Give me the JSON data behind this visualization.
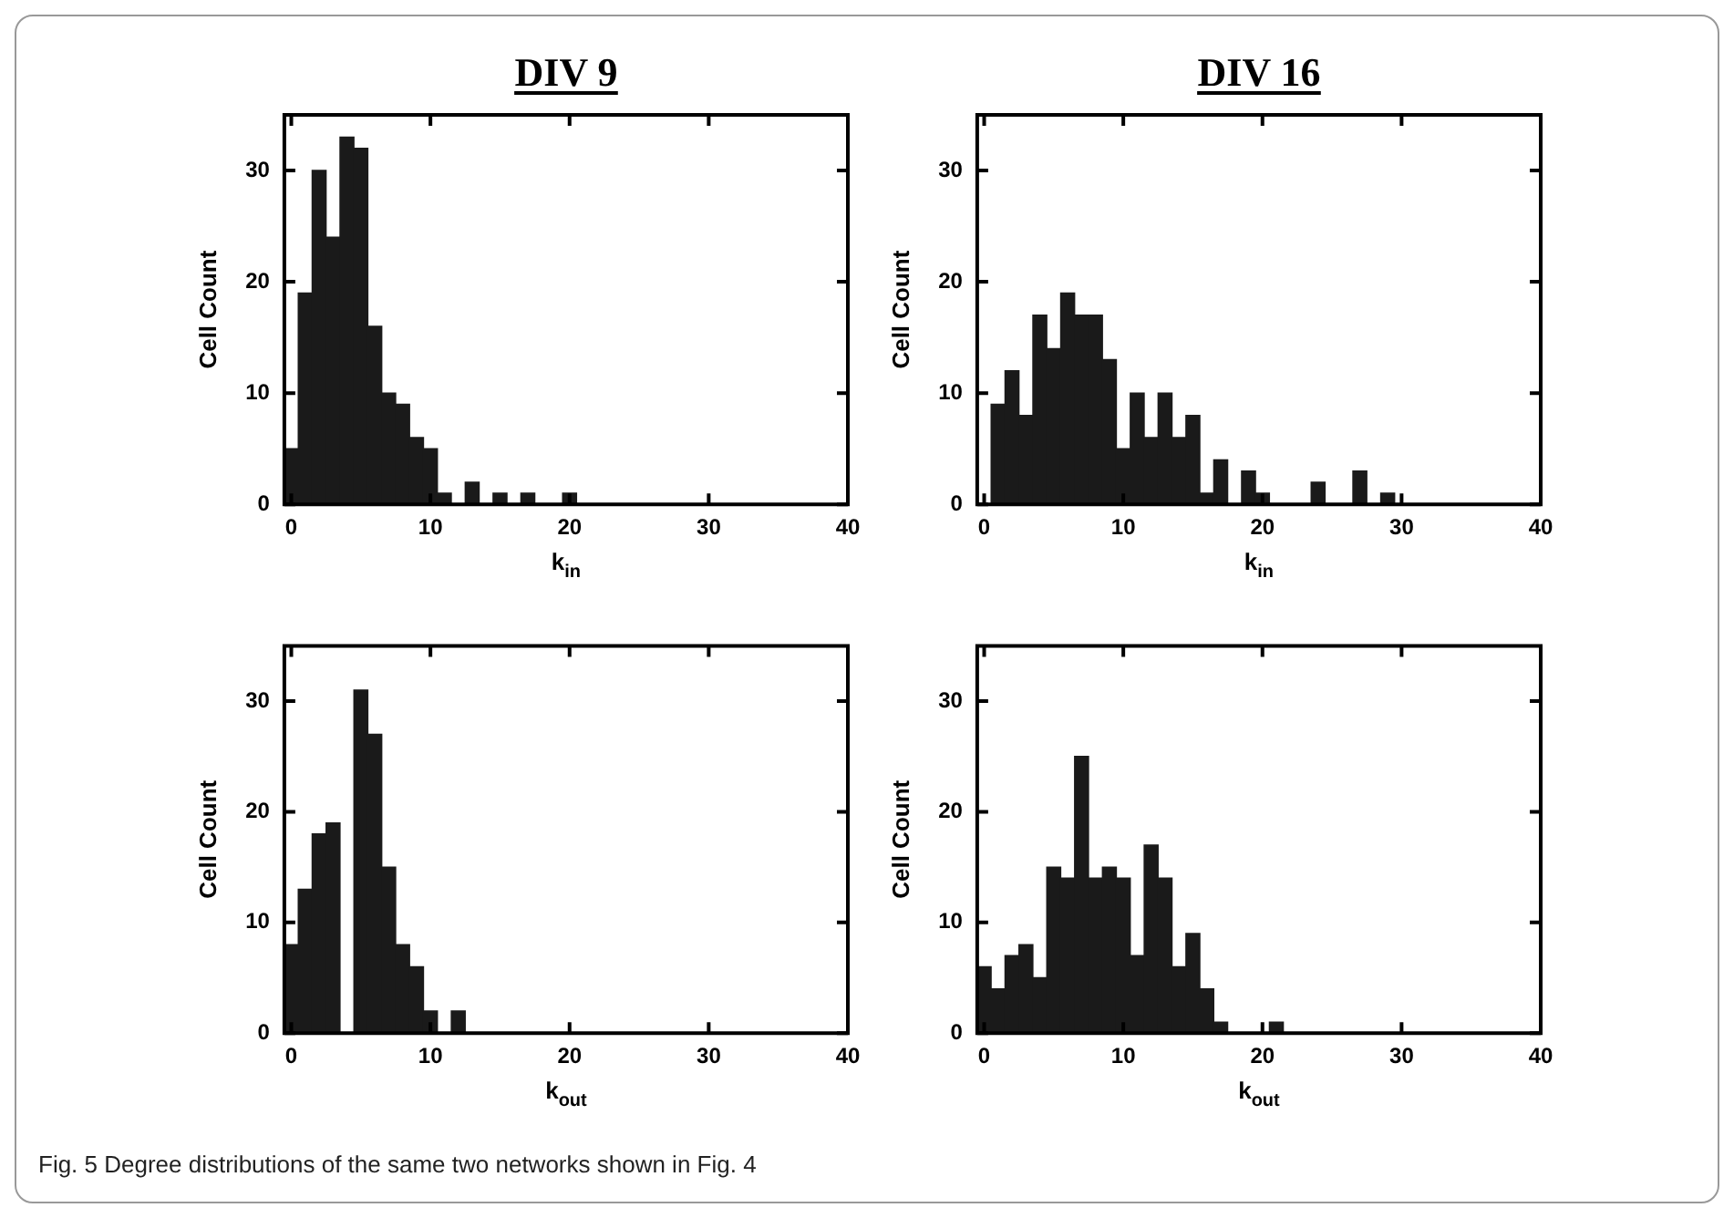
{
  "chart_data": [
    {
      "type": "histogram",
      "title": "DIV 9",
      "xlabel": "k$_{in}$",
      "ylabel": "Cell Count",
      "color": "#1a1a1a",
      "xlim": [
        -0.5,
        40
      ],
      "ylim": [
        0,
        35
      ],
      "xticks": [
        0,
        10,
        20,
        30,
        40
      ],
      "yticks": [
        0,
        10,
        20,
        30
      ],
      "bins": [
        -0.5,
        0.5,
        1.5,
        2.5,
        3.5,
        4.5,
        5.5,
        6.5,
        7.5,
        8.5,
        9.5,
        10.5,
        11.5,
        12.5,
        13.5,
        14.5,
        15.5,
        16.5,
        17.5,
        18.5,
        19.5,
        20.5
      ],
      "values": [
        5,
        19,
        30,
        24,
        33,
        32,
        16,
        10,
        9,
        6,
        5,
        1,
        0,
        2,
        0,
        1,
        0,
        1,
        0,
        0,
        1
      ]
    },
    {
      "type": "histogram",
      "title": "DIV 16",
      "xlabel": "k$_{in}$",
      "ylabel": "Cell Count",
      "color": "#1a1a1a",
      "xlim": [
        -0.5,
        40
      ],
      "ylim": [
        0,
        35
      ],
      "xticks": [
        0,
        10,
        20,
        30,
        40
      ],
      "yticks": [
        0,
        10,
        20,
        30
      ],
      "bins": [
        0.5,
        1.5,
        2.5,
        3.5,
        4.5,
        5.5,
        6.5,
        7.5,
        8.5,
        9.5,
        10.5,
        11.5,
        12.5,
        13.5,
        14.5,
        15.5,
        16.5,
        17.5,
        18.5,
        19.5,
        20.5,
        21.5,
        22.5,
        23.5,
        24.5,
        25.5,
        26.5,
        27.5,
        28.5,
        29.5
      ],
      "values": [
        9,
        12,
        8,
        17,
        14,
        19,
        17,
        17,
        13,
        5,
        10,
        6,
        10,
        6,
        8,
        1,
        4,
        0,
        3,
        1,
        0,
        0,
        0,
        2,
        0,
        0,
        3,
        0,
        1
      ]
    },
    {
      "type": "histogram",
      "xlabel": "k$_{out}$",
      "ylabel": "Cell Count",
      "color": "#1a1a1a",
      "xlim": [
        -0.5,
        40
      ],
      "ylim": [
        0,
        35
      ],
      "xticks": [
        0,
        10,
        20,
        30,
        40
      ],
      "yticks": [
        0,
        10,
        20,
        30
      ],
      "bins": [
        -0.5,
        0.5,
        1.5,
        2.5,
        3.5,
        4.5,
        5.5,
        6.5,
        7.5,
        8.5,
        9.5,
        10.5,
        11.5,
        12.5
      ],
      "values": [
        8,
        13,
        18,
        19,
        0,
        31,
        27,
        15,
        8,
        6,
        2,
        0,
        2
      ]
    },
    {
      "type": "histogram",
      "xlabel": "k$_{out}$",
      "ylabel": "Cell Count",
      "color": "#1a1a1a",
      "xlim": [
        -0.5,
        40
      ],
      "ylim": [
        0,
        35
      ],
      "xticks": [
        0,
        10,
        20,
        30,
        40
      ],
      "yticks": [
        0,
        10,
        20,
        30
      ],
      "bins": [
        -0.5,
        0.5,
        1.5,
        2.5,
        3.5,
        4.5,
        5.5,
        6.5,
        7.5,
        8.5,
        9.5,
        10.5,
        11.5,
        12.5,
        13.5,
        14.5,
        15.5,
        16.5,
        17.5,
        18.5,
        19.5,
        20.5,
        21.5
      ],
      "values": [
        6,
        4,
        7,
        8,
        5,
        15,
        14,
        25,
        14,
        15,
        14,
        7,
        17,
        14,
        6,
        9,
        4,
        1,
        0,
        0,
        0,
        1
      ],
      "annotations": [
        "Fig. 5  Degree distributions of the same two networks shown in Fig. 4"
      ]
    }
  ]
}
